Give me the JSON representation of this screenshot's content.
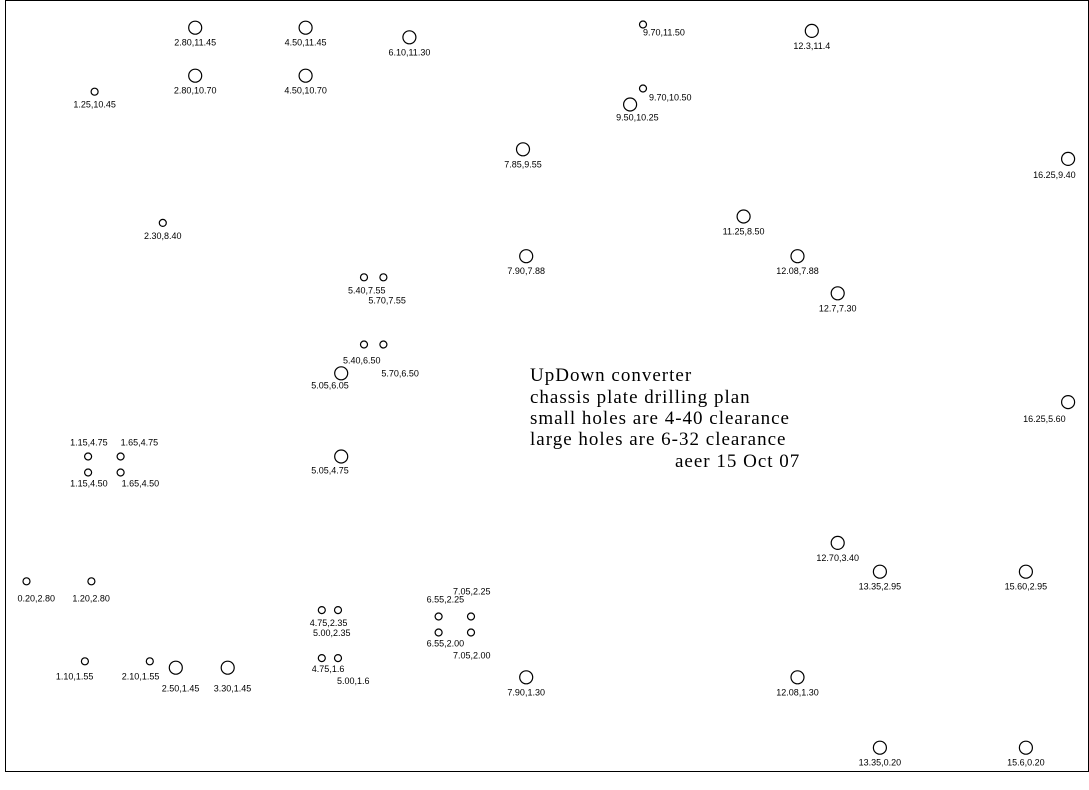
{
  "title_lines": [
    "UpDown converter",
    "chassis plate drilling plan",
    "small holes are 4-40 clearance",
    "large holes are 6-32 clearance",
    "aeer 15 Oct 07"
  ],
  "holes": [
    {
      "label": "2.80,11.45",
      "x": 2.8,
      "y": 11.45,
      "size": "large"
    },
    {
      "label": "4.50,11.45",
      "x": 4.5,
      "y": 11.45,
      "size": "large"
    },
    {
      "label": "6.10,11.30",
      "x": 6.1,
      "y": 11.3,
      "size": "large"
    },
    {
      "label": "9.70,11.50",
      "x": 9.7,
      "y": 11.5,
      "size": "small"
    },
    {
      "label": "12.3,11.4",
      "x": 12.3,
      "y": 11.4,
      "size": "large"
    },
    {
      "label": "2.80,10.70",
      "x": 2.8,
      "y": 10.7,
      "size": "large"
    },
    {
      "label": "4.50,10.70",
      "x": 4.5,
      "y": 10.7,
      "size": "large"
    },
    {
      "label": "1.25,10.45",
      "x": 1.25,
      "y": 10.45,
      "size": "small"
    },
    {
      "label": "9.70,10.50",
      "x": 9.7,
      "y": 10.5,
      "size": "small"
    },
    {
      "label": "9.50,10.25",
      "x": 9.5,
      "y": 10.25,
      "size": "large"
    },
    {
      "label": "7.85,9.55",
      "x": 7.85,
      "y": 9.55,
      "size": "large"
    },
    {
      "label": "16.25,9.40",
      "x": 16.25,
      "y": 9.4,
      "size": "large"
    },
    {
      "label": "2.30,8.40",
      "x": 2.3,
      "y": 8.4,
      "size": "small"
    },
    {
      "label": "11.25,8.50",
      "x": 11.25,
      "y": 8.5,
      "size": "large"
    },
    {
      "label": "7.90,7.88",
      "x": 7.9,
      "y": 7.88,
      "size": "large"
    },
    {
      "label": "12.08,7.88",
      "x": 12.08,
      "y": 7.88,
      "size": "large"
    },
    {
      "label": "12.7,7.30",
      "x": 12.7,
      "y": 7.3,
      "size": "large"
    },
    {
      "label": "5.40,7.55",
      "x": 5.4,
      "y": 7.55,
      "size": "small"
    },
    {
      "label": "5.70,7.55",
      "x": 5.7,
      "y": 7.55,
      "size": "small"
    },
    {
      "label": "5.40,6.50",
      "x": 5.4,
      "y": 6.5,
      "size": "small"
    },
    {
      "label": "5.70,6.50",
      "x": 5.7,
      "y": 6.5,
      "size": "small"
    },
    {
      "label": "5.05,6.05",
      "x": 5.05,
      "y": 6.05,
      "size": "large"
    },
    {
      "label": "16.25,5.60",
      "x": 16.25,
      "y": 5.6,
      "size": "large"
    },
    {
      "label": "1.15,4.75",
      "x": 1.15,
      "y": 4.75,
      "size": "small"
    },
    {
      "label": "1.65,4.75",
      "x": 1.65,
      "y": 4.75,
      "size": "small"
    },
    {
      "label": "1.15,4.50",
      "x": 1.15,
      "y": 4.5,
      "size": "small"
    },
    {
      "label": "1.65,4.50",
      "x": 1.65,
      "y": 4.5,
      "size": "small"
    },
    {
      "label": "5.05,4.75",
      "x": 5.05,
      "y": 4.75,
      "size": "large"
    },
    {
      "label": "12.70,3.40",
      "x": 12.7,
      "y": 3.4,
      "size": "large"
    },
    {
      "label": "13.35,2.95",
      "x": 13.35,
      "y": 2.95,
      "size": "large"
    },
    {
      "label": "15.60,2.95",
      "x": 15.6,
      "y": 2.95,
      "size": "large"
    },
    {
      "label": "0.20,2.80",
      "x": 0.2,
      "y": 2.8,
      "size": "small"
    },
    {
      "label": "1.20,2.80",
      "x": 1.2,
      "y": 2.8,
      "size": "small"
    },
    {
      "label": "7.05,2.25",
      "x": 7.05,
      "y": 2.25,
      "size": "small"
    },
    {
      "label": "6.55,2.25",
      "x": 6.55,
      "y": 2.25,
      "size": "small"
    },
    {
      "label": "4.75,2.35",
      "x": 4.75,
      "y": 2.35,
      "size": "small"
    },
    {
      "label": "5.00,2.35",
      "x": 5.0,
      "y": 2.35,
      "size": "small"
    },
    {
      "label": "6.55,2.00",
      "x": 6.55,
      "y": 2.0,
      "size": "small"
    },
    {
      "label": "7.05,2.00",
      "x": 7.05,
      "y": 2.0,
      "size": "small"
    },
    {
      "label": "1.10,1.55",
      "x": 1.1,
      "y": 1.55,
      "size": "small"
    },
    {
      "label": "2.10,1.55",
      "x": 2.1,
      "y": 1.55,
      "size": "small"
    },
    {
      "label": "2.50,1.45",
      "x": 2.5,
      "y": 1.45,
      "size": "large"
    },
    {
      "label": "3.30,1.45",
      "x": 3.3,
      "y": 1.45,
      "size": "large"
    },
    {
      "label": "4.75,1.6",
      "x": 4.75,
      "y": 1.6,
      "size": "small"
    },
    {
      "label": "5.00,1.6",
      "x": 5.0,
      "y": 1.6,
      "size": "small"
    },
    {
      "label": "7.90,1.30",
      "x": 7.9,
      "y": 1.3,
      "size": "large"
    },
    {
      "label": "12.08,1.30",
      "x": 12.08,
      "y": 1.3,
      "size": "large"
    },
    {
      "label": "13.35,0.20",
      "x": 13.35,
      "y": 0.2,
      "size": "large"
    },
    {
      "label": "15.6,0.20",
      "x": 15.6,
      "y": 0.2,
      "size": "large"
    }
  ]
}
